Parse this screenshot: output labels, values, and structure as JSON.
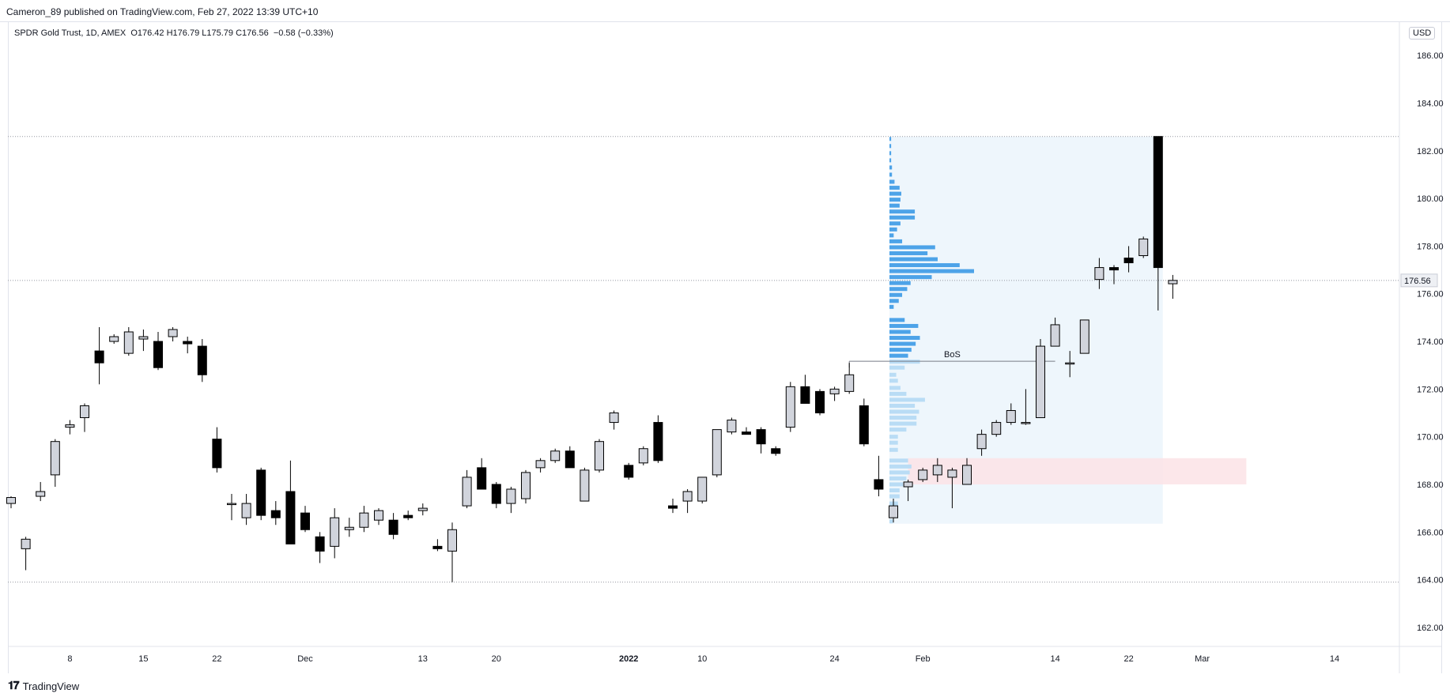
{
  "header": {
    "published": "Cameron_89 published on TradingView.com, Feb 27, 2022 13:39 UTC+10"
  },
  "legend": {
    "symbol": "SPDR Gold Trust, 1D, AMEX",
    "open": "O176.42",
    "high": "H176.79",
    "low": "L175.79",
    "close": "C176.56",
    "change": "−0.58 (−0.33%)"
  },
  "currency": "USD",
  "footer": {
    "logo_icon": "tradingview-logo-icon",
    "brand": "TradingView"
  },
  "colors": {
    "up_body": "#d1d4dc",
    "down_body": "#000000",
    "wick": "#000000",
    "volume_profile_up": "#4da3e8",
    "volume_profile_value_area": "#b9dcf5",
    "profile_background": "#eef6fc",
    "demand_zone": "#fbe3e6",
    "hline": "#9598a1"
  },
  "chart_data": {
    "type": "candlestick",
    "symbol": "SPDR Gold Trust",
    "interval": "1D",
    "exchange": "AMEX",
    "currency": "USD",
    "ylim": [
      161.2,
      187.4
    ],
    "y_ticks": [
      "162.00",
      "164.00",
      "166.00",
      "168.00",
      "170.00",
      "172.00",
      "174.00",
      "176.00",
      "178.00",
      "180.00",
      "182.00",
      "184.00",
      "186.00"
    ],
    "x_ticks": [
      {
        "label": "8",
        "bar": 4
      },
      {
        "label": "15",
        "bar": 9
      },
      {
        "label": "22",
        "bar": 14
      },
      {
        "label": "Dec",
        "bar": 20
      },
      {
        "label": "13",
        "bar": 28
      },
      {
        "label": "20",
        "bar": 33
      },
      {
        "label": "2022",
        "bar": 42
      },
      {
        "label": "10",
        "bar": 47
      },
      {
        "label": "24",
        "bar": 56
      },
      {
        "label": "Feb",
        "bar": 62
      },
      {
        "label": "14",
        "bar": 71
      },
      {
        "label": "22",
        "bar": 76
      },
      {
        "label": "Mar",
        "bar": 81
      },
      {
        "label": "14",
        "bar": 90
      }
    ],
    "last_price": "176.56",
    "candles": [
      {
        "o": 167.2,
        "h": 167.5,
        "l": 167.0,
        "c": 167.45
      },
      {
        "o": 165.3,
        "h": 165.8,
        "l": 164.4,
        "c": 165.7
      },
      {
        "o": 167.5,
        "h": 168.1,
        "l": 167.3,
        "c": 167.7
      },
      {
        "o": 168.4,
        "h": 169.9,
        "l": 167.9,
        "c": 169.8
      },
      {
        "o": 170.4,
        "h": 170.7,
        "l": 170.1,
        "c": 170.5
      },
      {
        "o": 170.8,
        "h": 171.4,
        "l": 170.2,
        "c": 171.3
      },
      {
        "o": 173.6,
        "h": 174.6,
        "l": 172.2,
        "c": 173.1
      },
      {
        "o": 174.0,
        "h": 174.3,
        "l": 173.9,
        "c": 174.2
      },
      {
        "o": 173.5,
        "h": 174.6,
        "l": 173.4,
        "c": 174.4
      },
      {
        "o": 174.1,
        "h": 174.5,
        "l": 173.6,
        "c": 174.2
      },
      {
        "o": 174.0,
        "h": 174.4,
        "l": 172.8,
        "c": 172.9
      },
      {
        "o": 174.2,
        "h": 174.6,
        "l": 174.0,
        "c": 174.5
      },
      {
        "o": 174.0,
        "h": 174.2,
        "l": 173.5,
        "c": 173.9
      },
      {
        "o": 173.8,
        "h": 174.1,
        "l": 172.3,
        "c": 172.6
      },
      {
        "o": 169.9,
        "h": 170.4,
        "l": 168.5,
        "c": 168.7
      },
      {
        "o": 167.2,
        "h": 167.6,
        "l": 166.5,
        "c": 167.2
      },
      {
        "o": 166.6,
        "h": 167.6,
        "l": 166.3,
        "c": 167.2
      },
      {
        "o": 168.6,
        "h": 168.7,
        "l": 166.5,
        "c": 166.7
      },
      {
        "o": 166.9,
        "h": 167.3,
        "l": 166.3,
        "c": 166.6
      },
      {
        "o": 167.7,
        "h": 169.0,
        "l": 165.5,
        "c": 165.5
      },
      {
        "o": 166.8,
        "h": 167.1,
        "l": 166.0,
        "c": 166.1
      },
      {
        "o": 165.8,
        "h": 166.0,
        "l": 164.7,
        "c": 165.2
      },
      {
        "o": 165.4,
        "h": 167.0,
        "l": 164.9,
        "c": 166.6
      },
      {
        "o": 166.1,
        "h": 166.6,
        "l": 165.8,
        "c": 166.2
      },
      {
        "o": 166.2,
        "h": 167.1,
        "l": 166.0,
        "c": 166.8
      },
      {
        "o": 166.5,
        "h": 167.0,
        "l": 166.3,
        "c": 166.9
      },
      {
        "o": 166.5,
        "h": 166.8,
        "l": 165.7,
        "c": 165.9
      },
      {
        "o": 166.7,
        "h": 166.9,
        "l": 166.5,
        "c": 166.6
      },
      {
        "o": 166.9,
        "h": 167.2,
        "l": 166.7,
        "c": 167.0
      },
      {
        "o": 165.4,
        "h": 165.7,
        "l": 165.2,
        "c": 165.3
      },
      {
        "o": 165.2,
        "h": 166.4,
        "l": 163.9,
        "c": 166.1
      },
      {
        "o": 167.1,
        "h": 168.6,
        "l": 167.0,
        "c": 168.3
      },
      {
        "o": 168.7,
        "h": 169.1,
        "l": 167.8,
        "c": 167.8
      },
      {
        "o": 168.0,
        "h": 168.1,
        "l": 167.0,
        "c": 167.2
      },
      {
        "o": 167.2,
        "h": 167.9,
        "l": 166.8,
        "c": 167.8
      },
      {
        "o": 167.4,
        "h": 168.6,
        "l": 167.2,
        "c": 168.5
      },
      {
        "o": 168.7,
        "h": 169.1,
        "l": 168.5,
        "c": 169.0
      },
      {
        "o": 169.0,
        "h": 169.5,
        "l": 168.9,
        "c": 169.4
      },
      {
        "o": 169.4,
        "h": 169.6,
        "l": 168.7,
        "c": 168.7
      },
      {
        "o": 167.3,
        "h": 168.7,
        "l": 167.3,
        "c": 168.6
      },
      {
        "o": 168.6,
        "h": 169.9,
        "l": 168.5,
        "c": 169.8
      },
      {
        "o": 170.6,
        "h": 171.1,
        "l": 170.3,
        "c": 171.0
      },
      {
        "o": 168.8,
        "h": 168.9,
        "l": 168.2,
        "c": 168.3
      },
      {
        "o": 168.9,
        "h": 169.6,
        "l": 168.8,
        "c": 169.5
      },
      {
        "o": 170.6,
        "h": 170.9,
        "l": 168.9,
        "c": 169.0
      },
      {
        "o": 167.1,
        "h": 167.4,
        "l": 166.8,
        "c": 167.0
      },
      {
        "o": 167.3,
        "h": 167.8,
        "l": 166.8,
        "c": 167.7
      },
      {
        "o": 167.3,
        "h": 168.3,
        "l": 167.2,
        "c": 168.3
      },
      {
        "o": 168.4,
        "h": 170.3,
        "l": 168.3,
        "c": 170.3
      },
      {
        "o": 170.2,
        "h": 170.8,
        "l": 170.1,
        "c": 170.7
      },
      {
        "o": 170.2,
        "h": 170.4,
        "l": 170.1,
        "c": 170.1
      },
      {
        "o": 170.3,
        "h": 170.4,
        "l": 169.3,
        "c": 169.7
      },
      {
        "o": 169.5,
        "h": 169.6,
        "l": 169.2,
        "c": 169.3
      },
      {
        "o": 170.4,
        "h": 172.3,
        "l": 170.2,
        "c": 172.1
      },
      {
        "o": 172.1,
        "h": 172.6,
        "l": 171.4,
        "c": 171.4
      },
      {
        "o": 171.9,
        "h": 172.0,
        "l": 170.9,
        "c": 171.0
      },
      {
        "o": 171.8,
        "h": 172.1,
        "l": 171.5,
        "c": 172.0
      },
      {
        "o": 171.9,
        "h": 173.1,
        "l": 171.8,
        "c": 172.6
      },
      {
        "o": 171.3,
        "h": 171.6,
        "l": 169.6,
        "c": 169.7
      },
      {
        "o": 168.2,
        "h": 169.2,
        "l": 167.5,
        "c": 167.8
      },
      {
        "o": 166.6,
        "h": 167.4,
        "l": 166.4,
        "c": 167.1
      },
      {
        "o": 167.9,
        "h": 168.2,
        "l": 167.3,
        "c": 168.1
      },
      {
        "o": 168.2,
        "h": 168.7,
        "l": 168.1,
        "c": 168.6
      },
      {
        "o": 168.4,
        "h": 169.1,
        "l": 168.1,
        "c": 168.8
      },
      {
        "o": 168.3,
        "h": 168.7,
        "l": 167.0,
        "c": 168.6
      },
      {
        "o": 168.0,
        "h": 169.1,
        "l": 168.0,
        "c": 168.8
      },
      {
        "o": 169.5,
        "h": 170.3,
        "l": 169.2,
        "c": 170.1
      },
      {
        "o": 170.1,
        "h": 170.7,
        "l": 170.0,
        "c": 170.6
      },
      {
        "o": 170.6,
        "h": 171.4,
        "l": 170.5,
        "c": 171.1
      },
      {
        "o": 170.6,
        "h": 172.0,
        "l": 170.5,
        "c": 170.6
      },
      {
        "o": 170.8,
        "h": 174.1,
        "l": 170.8,
        "c": 173.8
      },
      {
        "o": 173.8,
        "h": 175.0,
        "l": 173.8,
        "c": 174.7
      },
      {
        "o": 173.1,
        "h": 173.6,
        "l": 172.5,
        "c": 173.1
      },
      {
        "o": 173.5,
        "h": 174.9,
        "l": 173.5,
        "c": 174.9
      },
      {
        "o": 176.6,
        "h": 177.5,
        "l": 176.2,
        "c": 177.1
      },
      {
        "o": 177.1,
        "h": 177.2,
        "l": 176.4,
        "c": 177.0
      },
      {
        "o": 177.5,
        "h": 178.0,
        "l": 176.9,
        "c": 177.3
      },
      {
        "o": 177.6,
        "h": 178.4,
        "l": 177.5,
        "c": 178.3
      },
      {
        "o": 182.6,
        "h": 182.6,
        "l": 175.3,
        "c": 177.1
      },
      {
        "o": 176.42,
        "h": 176.79,
        "l": 175.79,
        "c": 176.56
      }
    ],
    "volume_profile": {
      "bar_start": 60,
      "bar_end": 78,
      "price_low": 166.35,
      "price_high": 182.6,
      "rows": [
        {
          "price": 182.5,
          "vol": 0.02,
          "in_value_area": true
        },
        {
          "price": 182.2,
          "vol": 0.02,
          "in_value_area": true
        },
        {
          "price": 181.9,
          "vol": 0.02,
          "in_value_area": true
        },
        {
          "price": 181.6,
          "vol": 0.02,
          "in_value_area": true
        },
        {
          "price": 181.3,
          "vol": 0.03,
          "in_value_area": true
        },
        {
          "price": 181.0,
          "vol": 0.03,
          "in_value_area": true
        },
        {
          "price": 180.7,
          "vol": 0.06,
          "in_value_area": true
        },
        {
          "price": 180.45,
          "vol": 0.12,
          "in_value_area": true
        },
        {
          "price": 180.2,
          "vol": 0.14,
          "in_value_area": true
        },
        {
          "price": 179.95,
          "vol": 0.13,
          "in_value_area": true
        },
        {
          "price": 179.7,
          "vol": 0.12,
          "in_value_area": true
        },
        {
          "price": 179.45,
          "vol": 0.3,
          "in_value_area": true
        },
        {
          "price": 179.2,
          "vol": 0.3,
          "in_value_area": true
        },
        {
          "price": 178.95,
          "vol": 0.13,
          "in_value_area": true
        },
        {
          "price": 178.7,
          "vol": 0.09,
          "in_value_area": true
        },
        {
          "price": 178.45,
          "vol": 0.05,
          "in_value_area": true
        },
        {
          "price": 178.2,
          "vol": 0.15,
          "in_value_area": true
        },
        {
          "price": 177.95,
          "vol": 0.54,
          "in_value_area": true
        },
        {
          "price": 177.7,
          "vol": 0.45,
          "in_value_area": true
        },
        {
          "price": 177.45,
          "vol": 0.57,
          "in_value_area": true
        },
        {
          "price": 177.2,
          "vol": 0.83,
          "in_value_area": true
        },
        {
          "price": 176.95,
          "vol": 1.0,
          "in_value_area": true
        },
        {
          "price": 176.7,
          "vol": 0.5,
          "in_value_area": true
        },
        {
          "price": 176.45,
          "vol": 0.25,
          "in_value_area": true
        },
        {
          "price": 176.2,
          "vol": 0.21,
          "in_value_area": true
        },
        {
          "price": 175.95,
          "vol": 0.15,
          "in_value_area": true
        },
        {
          "price": 175.7,
          "vol": 0.11,
          "in_value_area": true
        },
        {
          "price": 175.45,
          "vol": 0.05,
          "in_value_area": true
        },
        {
          "price": 174.9,
          "vol": 0.18,
          "in_value_area": true
        },
        {
          "price": 174.65,
          "vol": 0.34,
          "in_value_area": true
        },
        {
          "price": 174.4,
          "vol": 0.25,
          "in_value_area": true
        },
        {
          "price": 174.15,
          "vol": 0.36,
          "in_value_area": true
        },
        {
          "price": 173.9,
          "vol": 0.31,
          "in_value_area": true
        },
        {
          "price": 173.65,
          "vol": 0.26,
          "in_value_area": true
        },
        {
          "price": 173.4,
          "vol": 0.22,
          "in_value_area": true
        },
        {
          "price": 173.15,
          "vol": 0.36,
          "in_value_area": false
        },
        {
          "price": 172.9,
          "vol": 0.18,
          "in_value_area": false
        },
        {
          "price": 172.6,
          "vol": 0.08,
          "in_value_area": false
        },
        {
          "price": 172.35,
          "vol": 0.1,
          "in_value_area": false
        },
        {
          "price": 172.05,
          "vol": 0.13,
          "in_value_area": false
        },
        {
          "price": 171.8,
          "vol": 0.2,
          "in_value_area": false
        },
        {
          "price": 171.55,
          "vol": 0.42,
          "in_value_area": false
        },
        {
          "price": 171.3,
          "vol": 0.3,
          "in_value_area": false
        },
        {
          "price": 171.05,
          "vol": 0.35,
          "in_value_area": false
        },
        {
          "price": 170.8,
          "vol": 0.32,
          "in_value_area": false
        },
        {
          "price": 170.55,
          "vol": 0.32,
          "in_value_area": false
        },
        {
          "price": 170.3,
          "vol": 0.2,
          "in_value_area": false
        },
        {
          "price": 170.0,
          "vol": 0.1,
          "in_value_area": false
        },
        {
          "price": 169.75,
          "vol": 0.1,
          "in_value_area": false
        },
        {
          "price": 169.45,
          "vol": 0.1,
          "in_value_area": false
        },
        {
          "price": 169.0,
          "vol": 0.22,
          "in_value_area": false
        },
        {
          "price": 168.75,
          "vol": 0.26,
          "in_value_area": false
        },
        {
          "price": 168.5,
          "vol": 0.24,
          "in_value_area": false
        },
        {
          "price": 168.25,
          "vol": 0.2,
          "in_value_area": false
        },
        {
          "price": 168.0,
          "vol": 0.16,
          "in_value_area": false
        },
        {
          "price": 167.75,
          "vol": 0.12,
          "in_value_area": false
        },
        {
          "price": 167.5,
          "vol": 0.12,
          "in_value_area": false
        },
        {
          "price": 167.2,
          "vol": 0.1,
          "in_value_area": false
        },
        {
          "price": 166.95,
          "vol": 0.09,
          "in_value_area": false
        },
        {
          "price": 166.7,
          "vol": 0.08,
          "in_value_area": false
        },
        {
          "price": 166.45,
          "vol": 0.04,
          "in_value_area": false
        }
      ]
    },
    "annotations": {
      "horizontal_lines": [
        182.6,
        176.56,
        163.9
      ],
      "bos_line": {
        "price": 173.1,
        "bar_start": 57,
        "bar_end": 71,
        "label": "BoS"
      },
      "demand_zone": {
        "price_low": 168.0,
        "price_high": 169.1,
        "bar_start": 61,
        "bar_end": 84
      }
    }
  }
}
